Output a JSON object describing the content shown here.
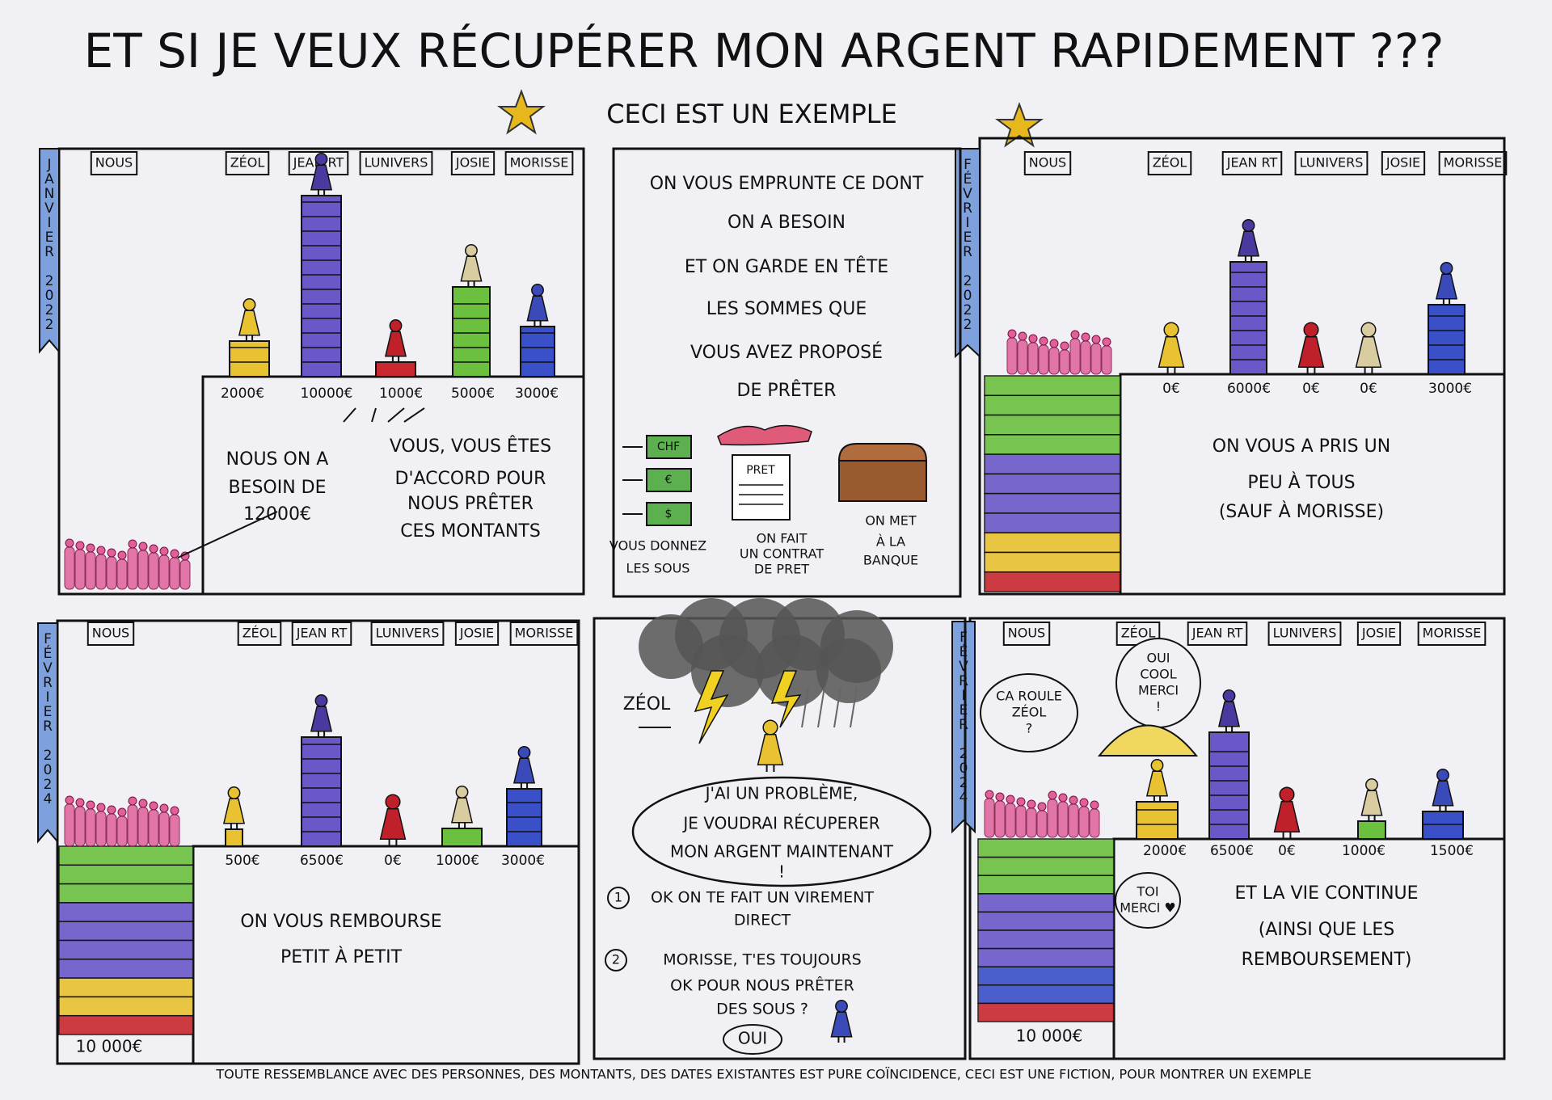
{
  "title": "ET SI JE VEUX RÉCUPÉRER MON ARGENT RAPIDEMENT ???",
  "subtitle": "CECI EST UN EXEMPLE",
  "footer": "TOUTE RESSEMBLANCE AVEC DES PERSONNES, DES MONTANTS, DES DATES EXISTANTES EST PURE COÏNCIDENCE, CECI EST UNE FICTION, POUR MONTRER UN EXEMPLE",
  "panels": [
    {
      "month": "JANVIER 2022",
      "people": [
        "NOUS",
        "ZÉOL",
        "JEAN RT",
        "LUNIVERS",
        "JOSIE",
        "MORISSE"
      ],
      "amounts": [
        "2000€",
        "10000€",
        "1000€",
        "5000€",
        "3000€"
      ],
      "texts": [
        [
          "NOUS ON A",
          "BESOIN DE",
          "12000€"
        ],
        [
          "VOUS, VOUS ÊTES",
          "D'ACCORD POUR",
          "NOUS PRÊTER",
          "CES MONTANTS"
        ]
      ]
    },
    {
      "lines": [
        "ON VOUS EMPRUNTE CE DONT",
        "ON A BESOIN",
        "ET ON GARDE EN TÊTE",
        "LES SOMMES QUE",
        "VOUS AVEZ PROPOSÉ",
        "DE PRÊTER"
      ],
      "bills": [
        "CHF",
        "€",
        "$"
      ],
      "contract": "PRET",
      "captions": [
        [
          "VOUS DONNEZ",
          "LES SOUS"
        ],
        [
          "ON FAIT",
          "UN CONTRAT",
          "DE PRET"
        ],
        [
          "ON MET",
          "À LA",
          "BANQUE"
        ]
      ]
    },
    {
      "month": "FÉVRIER 2022",
      "people": [
        "NOUS",
        "ZÉOL",
        "JEAN RT",
        "LUNIVERS",
        "JOSIE",
        "MORISSE"
      ],
      "amounts": [
        "0€",
        "6000€",
        "0€",
        "0€",
        "3000€"
      ],
      "texts": [
        [
          "ON VOUS A PRIS UN",
          "PEU À TOUS",
          "(SAUF À MORISSE)"
        ]
      ]
    },
    {
      "month": "FÉVRIER 2024",
      "people": [
        "NOUS",
        "ZÉOL",
        "JEAN RT",
        "LUNIVERS",
        "JOSIE",
        "MORISSE"
      ],
      "amounts": [
        "500€",
        "6500€",
        "0€",
        "1000€",
        "3000€"
      ],
      "total": "10 000€",
      "texts": [
        [
          "ON VOUS REMBOURSE",
          "PETIT À PETIT"
        ]
      ]
    },
    {
      "label": "ZÉOL",
      "bubble": [
        "J'AI UN PROBLÈME,",
        "JE VOUDRAI RÉCUPERER",
        "MON ARGENT MAINTENANT",
        "!"
      ],
      "options": [
        {
          "number": "1",
          "lines": [
            "OK ON TE FAIT UN VIREMENT",
            "DIRECT"
          ]
        },
        {
          "number": "2",
          "lines": [
            "MORISSE, T'ES TOUJOURS",
            "OK POUR NOUS PRÊTER",
            "DES SOUS ?"
          ]
        }
      ],
      "reply": "OUI"
    },
    {
      "month": "FÉVRIER 2024",
      "people": [
        "NOUS",
        "ZÉOL",
        "JEAN RT",
        "LUNIVERS",
        "JOSIE",
        "MORISSE"
      ],
      "amounts": [
        "2000€",
        "6500€",
        "0€",
        "1000€",
        "1500€"
      ],
      "total": "10 000€",
      "bubbles": [
        [
          "CA ROULE",
          "ZÉOL",
          "?"
        ],
        [
          "OUI",
          "COOL",
          "MERCI",
          "!"
        ],
        [
          "TOI",
          "MERCI ♥"
        ]
      ],
      "texts": [
        [
          "ET LA VIE CONTINUE",
          "(AINSI QUE LES",
          "REMBOURSEMENT)"
        ]
      ]
    }
  ]
}
